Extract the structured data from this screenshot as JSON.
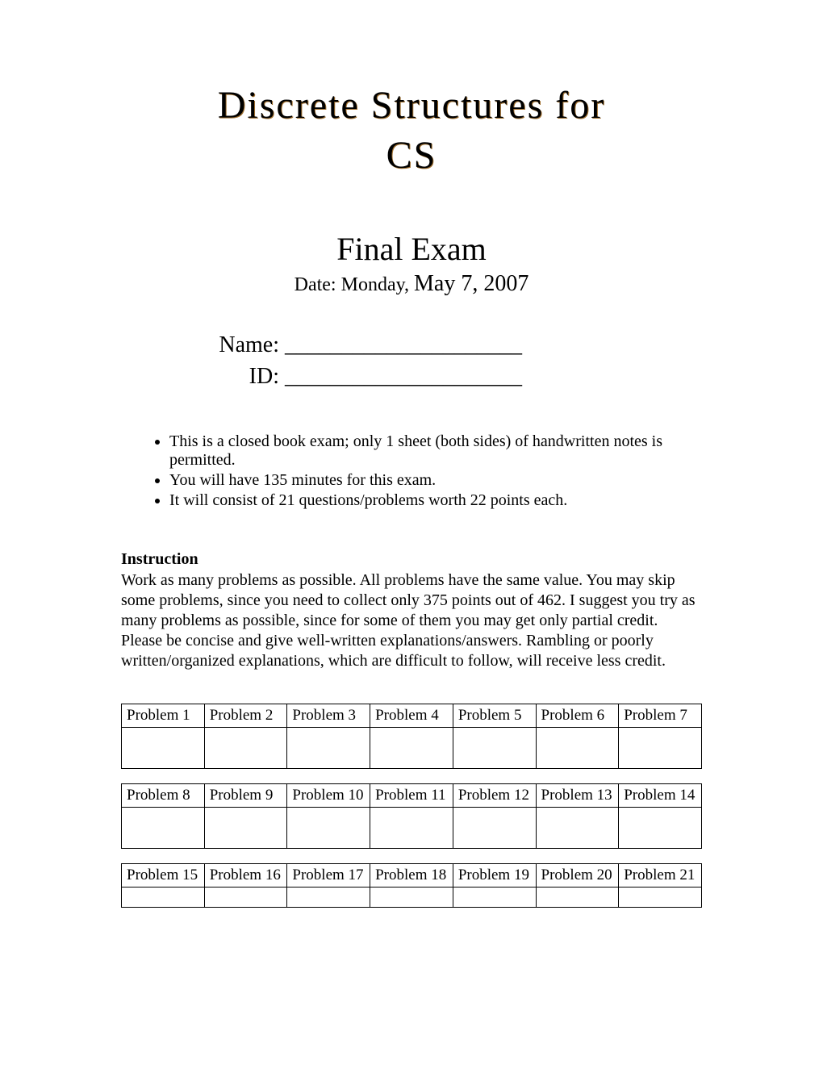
{
  "title_line1": "Discrete Structures for",
  "title_line2": "CS",
  "subtitle": "Final Exam",
  "date_prefix": "Date: Monday, ",
  "date_main": "May 7, 2007",
  "name_label": "Name:",
  "name_blank": "_____________________",
  "id_label": "ID:",
  "id_blank": "_____________________",
  "bullets": [
    "This is a closed book exam; only 1 sheet (both sides) of handwritten notes is permitted.",
    "You will have 135 minutes for this exam.",
    "It will consist of 21 questions/problems worth 22 points each."
  ],
  "instruction_heading": "Instruction",
  "instruction_text": "Work as many problems as possible. All problems have the same value. You may skip some problems, since you need to collect only 375 points out of 462. I suggest you try as many problems as possible, since for some of them you may get only partial credit. Please be concise and give well-written explanations/answers. Rambling or poorly written/organized explanations, which are difficult to follow, will receive less credit.",
  "table1": [
    "Problem 1",
    "Problem 2",
    "Problem 3",
    "Problem 4",
    "Problem 5",
    "Problem 6",
    "Problem 7"
  ],
  "table2": [
    "Problem 8",
    "Problem 9",
    "Problem 10",
    "Problem 11",
    "Problem 12",
    "Problem 13",
    "Problem 14"
  ],
  "table3": [
    "Problem 15",
    "Problem 16",
    "Problem 17",
    "Problem 18",
    "Problem 19",
    "Problem 20",
    "Problem 21"
  ]
}
